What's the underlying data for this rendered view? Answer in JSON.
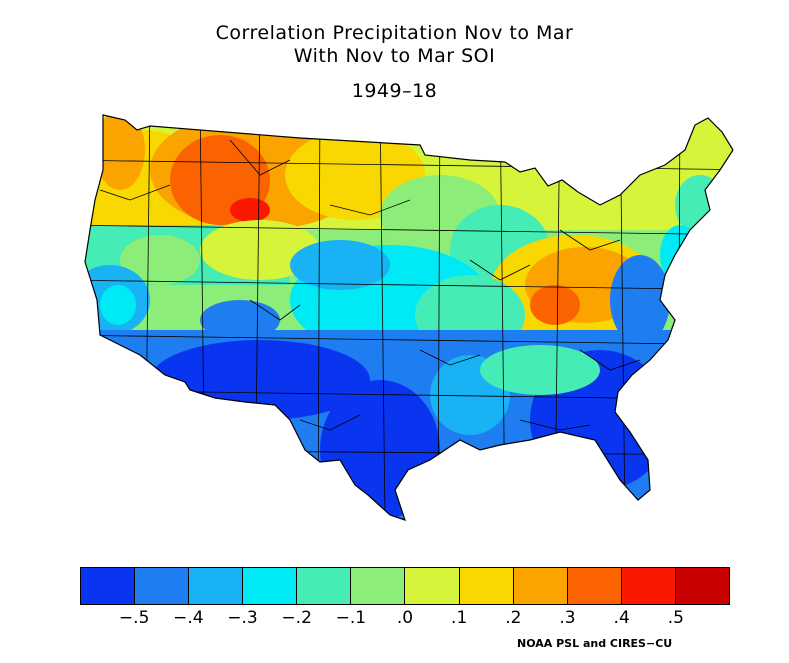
{
  "title": {
    "line1": "Correlation Precipitation Nov to Mar",
    "line2": "With Nov to Mar SOI",
    "line3": "1949–18"
  },
  "legend": {
    "colors": [
      "#0a35f0",
      "#1e7df0",
      "#18b2f5",
      "#00eaf5",
      "#45ecb5",
      "#8ced78",
      "#d6f53a",
      "#f8d800",
      "#fba400",
      "#fb6300",
      "#fb1800",
      "#c80000"
    ],
    "tick_labels": [
      "−.5",
      "−.4",
      "−.3",
      "−.2",
      "−.1",
      ".0",
      ".1",
      ".2",
      ".3",
      ".4",
      ".5"
    ]
  },
  "map_regions": [
    {
      "region": "Pacific Northwest coast",
      "value": 0.15
    },
    {
      "region": "Northern Rockies",
      "value": 0.35
    },
    {
      "region": "Northern Plains",
      "value": 0.2
    },
    {
      "region": "Upper Midwest",
      "value": 0.05
    },
    {
      "region": "Northeast",
      "value": 0.05
    },
    {
      "region": "Ohio Valley / Appalachians",
      "value": 0.25
    },
    {
      "region": "Great Basin",
      "value": -0.15
    },
    {
      "region": "Central Plains",
      "value": -0.25
    },
    {
      "region": "California",
      "value": -0.35
    },
    {
      "region": "Desert Southwest",
      "value": -0.5
    },
    {
      "region": "Texas / Gulf Coast",
      "value": -0.5
    },
    {
      "region": "Southeast / Florida",
      "value": -0.5
    }
  ],
  "credit": "NOAA PSL and CIRES−CU"
}
